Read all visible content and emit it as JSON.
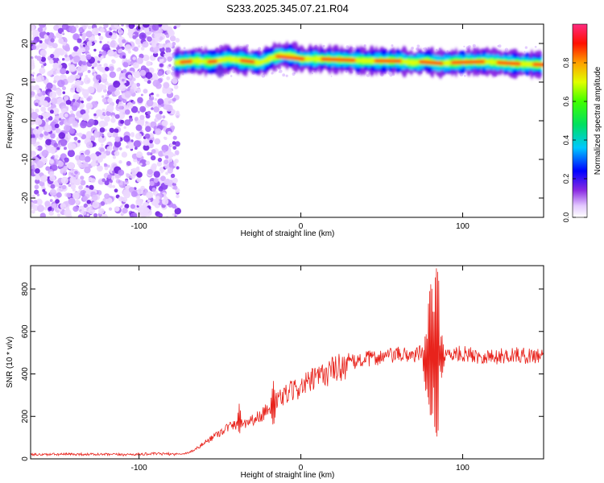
{
  "title": "S233.2025.345.07.21.R04",
  "chart_data": [
    {
      "type": "heatmap",
      "title": "S233.2025.345.07.21.R04",
      "xlabel": "Height of straight line (km)",
      "ylabel": "Frequency (Hz)",
      "xlim": [
        -167,
        150
      ],
      "ylim": [
        -25,
        25
      ],
      "xticks": [
        -100,
        0,
        100
      ],
      "yticks": [
        -20,
        -10,
        0,
        10,
        20
      ],
      "colorbar": {
        "label": "Normalized spectral amplitude",
        "range": [
          0,
          1
        ],
        "ticks": [
          0.0,
          0.2,
          0.4,
          0.6,
          0.8
        ],
        "colormap": [
          "#e8e0ff",
          "#8a2be2",
          "#0000ff",
          "#00c8ff",
          "#00ff40",
          "#c8ff00",
          "#ffa000",
          "#ff0000",
          "#ff2a80"
        ]
      },
      "noise_region": {
        "x_range": [
          -167,
          -80
        ],
        "freq_range": [
          -25,
          25
        ],
        "amplitude": 0.15
      },
      "ridge": [
        {
          "x": -78,
          "f": 15.0
        },
        {
          "x": -65,
          "f": 15.5
        },
        {
          "x": -55,
          "f": 15.2
        },
        {
          "x": -45,
          "f": 16.0
        },
        {
          "x": -35,
          "f": 15.5
        },
        {
          "x": -25,
          "f": 15.0
        },
        {
          "x": -18,
          "f": 16.3
        },
        {
          "x": -12,
          "f": 17.0
        },
        {
          "x": -5,
          "f": 16.8
        },
        {
          "x": 0,
          "f": 16.0
        },
        {
          "x": 10,
          "f": 16.0
        },
        {
          "x": 25,
          "f": 15.8
        },
        {
          "x": 40,
          "f": 15.5
        },
        {
          "x": 60,
          "f": 15.5
        },
        {
          "x": 70,
          "f": 15.0
        },
        {
          "x": 78,
          "f": 15.5
        },
        {
          "x": 85,
          "f": 14.8
        },
        {
          "x": 92,
          "f": 15.0
        },
        {
          "x": 100,
          "f": 15.2
        },
        {
          "x": 115,
          "f": 15.3
        },
        {
          "x": 130,
          "f": 14.8
        },
        {
          "x": 150,
          "f": 14.5
        }
      ]
    },
    {
      "type": "line",
      "xlabel": "Height of straight line (km)",
      "ylabel": "SNR (10 * v/v)",
      "xlim": [
        -167,
        150
      ],
      "ylim": [
        0,
        910
      ],
      "xticks": [
        -100,
        0,
        100
      ],
      "yticks": [
        0,
        200,
        400,
        600,
        800
      ],
      "color": "#e8231c",
      "series": [
        {
          "name": "SNR",
          "x": [
            -167,
            -140,
            -110,
            -90,
            -75,
            -70,
            -65,
            -55,
            -45,
            -35,
            -25,
            -20,
            -10,
            0,
            10,
            20,
            30,
            40,
            50,
            60,
            70,
            75,
            80,
            85,
            90,
            100,
            110,
            120,
            130,
            140,
            150
          ],
          "y": [
            20,
            22,
            20,
            24,
            22,
            28,
            45,
            100,
            150,
            170,
            200,
            240,
            300,
            340,
            380,
            420,
            450,
            470,
            480,
            490,
            490,
            500,
            510,
            480,
            490,
            495,
            485,
            480,
            490,
            485,
            490
          ]
        }
      ],
      "spikes": [
        {
          "x": -38,
          "peak": 265,
          "low": 110
        },
        {
          "x": -17,
          "peak": 370,
          "low": 150
        },
        {
          "x": 77,
          "peak": 540,
          "low": 380
        },
        {
          "x": 80,
          "peak": 800,
          "low": 230
        },
        {
          "x": 84,
          "peak": 910,
          "low": 100
        },
        {
          "x": 87,
          "peak": 600,
          "low": 380
        }
      ]
    }
  ]
}
